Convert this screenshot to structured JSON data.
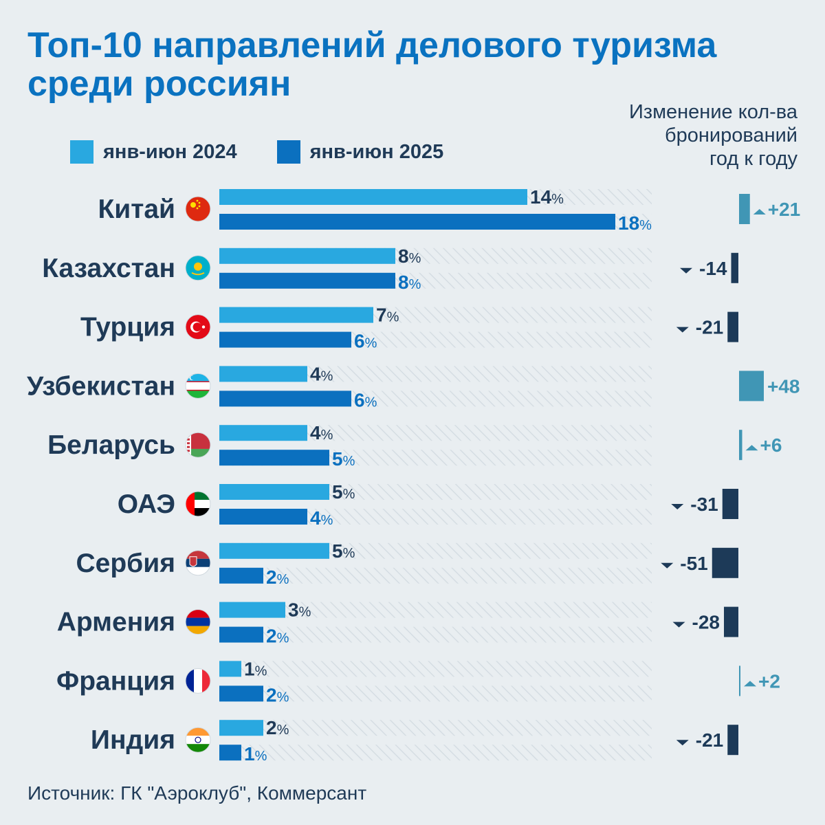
{
  "title_lines": [
    "Топ-10 направлений делового туризма",
    "среди россиян"
  ],
  "change_caption_lines": [
    "Изменение кол-ва",
    "бронирований",
    "год к году"
  ],
  "legend": [
    {
      "label": "янв-июн 2024",
      "color": "#29a8e0"
    },
    {
      "label": "янв-июн 2025",
      "color": "#0b70bf"
    }
  ],
  "source": "Источник: ГК \"Аэроклуб\", Коммерсант",
  "colors": {
    "bar_2024": "#29a8e0",
    "bar_2025": "#0b70bf",
    "label_2024": "#1f3a57",
    "label_2025": "#0b70bf",
    "change_up": "#4096b5",
    "change_down": "#1d3a58",
    "country_label": "#1f3a57",
    "stripe": "#d5dde3"
  },
  "chart_data": {
    "type": "bar",
    "orientation": "horizontal",
    "title": "Топ-10 направлений делового туризма среди россиян",
    "value_unit": "%",
    "xlim": [
      0,
      18
    ],
    "categories": [
      "Китай",
      "Казахстан",
      "Турция",
      "Узбекистан",
      "Беларусь",
      "ОАЭ",
      "Сербия",
      "Армения",
      "Франция",
      "Индия"
    ],
    "series": [
      {
        "name": "янв-июн 2024",
        "values": [
          14,
          8,
          7,
          4,
          4,
          5,
          5,
          3,
          1,
          2
        ]
      },
      {
        "name": "янв-июн 2025",
        "values": [
          18,
          8,
          6,
          6,
          5,
          4,
          2,
          2,
          2,
          1
        ]
      }
    ],
    "change_yoy": {
      "title": "Изменение кол-ва бронирований год к году",
      "labels": [
        "+21",
        "-14",
        "-21",
        "+48",
        "+6",
        "-31",
        "-51",
        "-28",
        "+2",
        "-21"
      ],
      "values": [
        21,
        -14,
        -21,
        48,
        6,
        -31,
        -51,
        -28,
        2,
        -21
      ]
    }
  }
}
